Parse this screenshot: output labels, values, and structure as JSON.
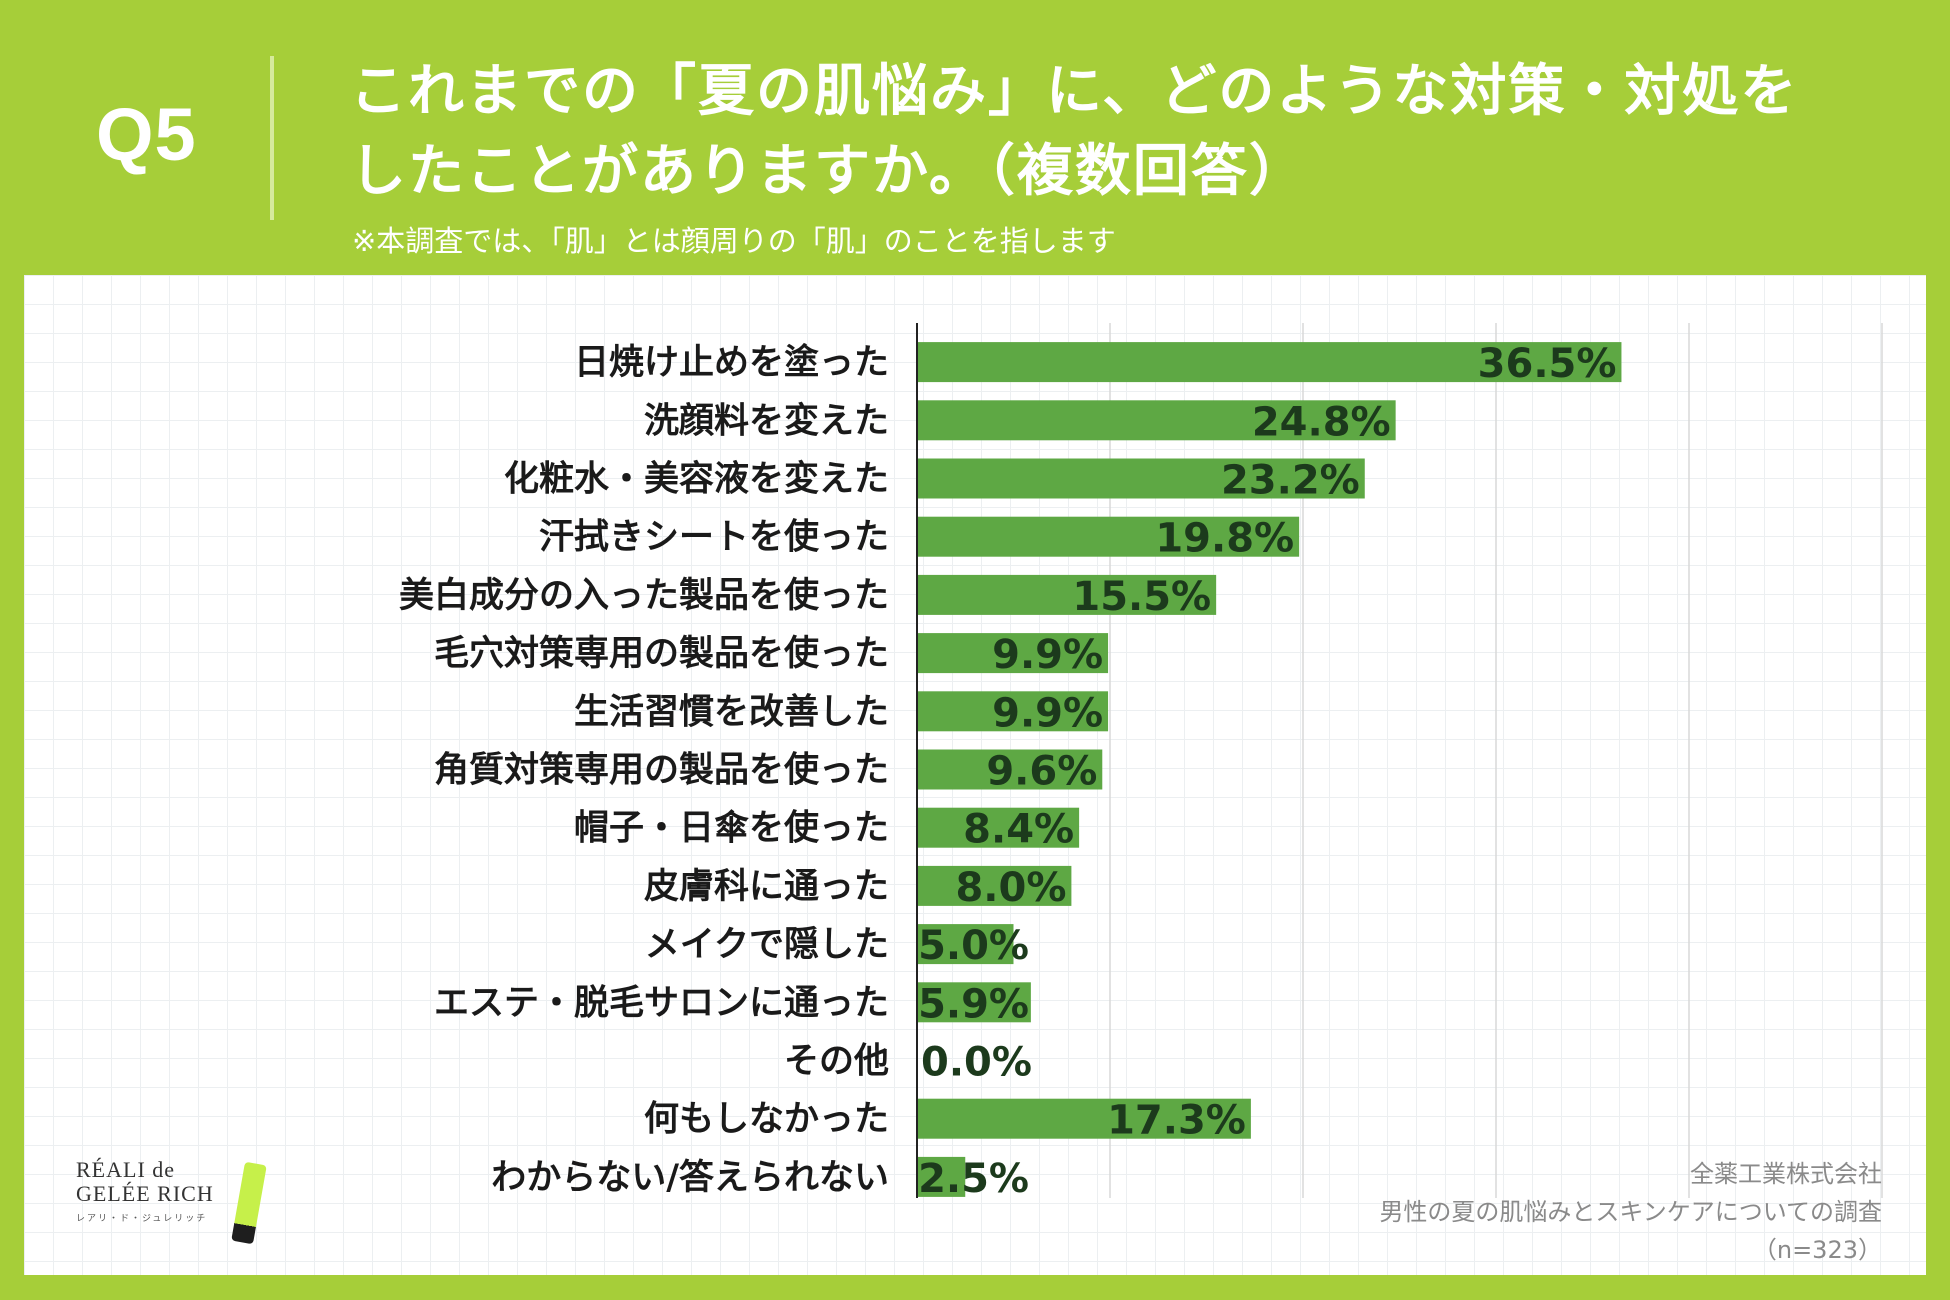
{
  "header": {
    "q_label": "Q5",
    "title_line1": "これまでの「夏の肌悩み」に、どのような対策・対処を",
    "title_line2": "したことがありますか。（複数回答）",
    "note": "※本調査では、「肌」とは顔周りの「肌」のことを指します"
  },
  "source": {
    "company": "全薬工業株式会社",
    "survey": "男性の夏の肌悩みとスキンケアについての調査",
    "sample": "（n=323）"
  },
  "logo": {
    "line1": "RÉALI de",
    "line2": "GELÉE RICH",
    "sub": "レアリ・ド・ジュレリッチ"
  },
  "colors": {
    "background": "#a6ce39",
    "bar": "#5ea844",
    "value_text": "#1c3a1c",
    "grid": "#d8d8d8"
  },
  "chart_data": {
    "type": "bar",
    "orientation": "horizontal",
    "title": "これまでの「夏の肌悩み」に、どのような対策・対処をしたことがありますか。（複数回答）",
    "xlabel": "",
    "ylabel": "",
    "xlim": [
      0,
      50
    ],
    "grid": true,
    "unit": "%",
    "categories": [
      "日焼け止めを塗った",
      "洗顔料を変えた",
      "化粧水・美容液を変えた",
      "汗拭きシートを使った",
      "美白成分の入った製品を使った",
      "毛穴対策専用の製品を使った",
      "生活習慣を改善した",
      "角質対策専用の製品を使った",
      "帽子・日傘を使った",
      "皮膚科に通った",
      "メイクで隠した",
      "エステ・脱毛サロンに通った",
      "その他",
      "何もしなかった",
      "わからない/答えられない"
    ],
    "values": [
      36.5,
      24.8,
      23.2,
      19.8,
      15.5,
      9.9,
      9.9,
      9.6,
      8.4,
      8.0,
      5.0,
      5.9,
      0.0,
      17.3,
      2.5
    ],
    "value_labels": [
      "36.5%",
      "24.8%",
      "23.2%",
      "19.8%",
      "15.5%",
      "9.9%",
      "9.9%",
      "9.6%",
      "8.4%",
      "8.0%",
      "5.0%",
      "5.9%",
      "0.0%",
      "17.3%",
      "2.5%"
    ]
  }
}
